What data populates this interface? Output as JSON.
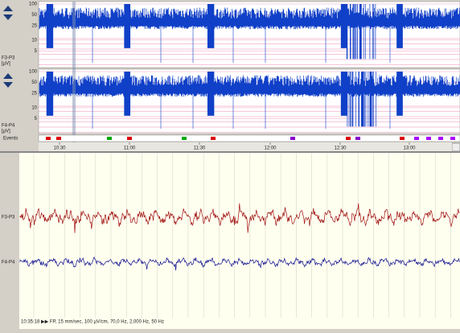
{
  "channels": [
    {
      "label": "F3-P3",
      "unit": "[µV]"
    },
    {
      "label": "F4-P4",
      "unit": "[µV]"
    }
  ],
  "trend_scale": [
    100,
    50,
    25,
    10,
    5
  ],
  "events_label": "Events",
  "time_axis": [
    "10:30",
    "11:00",
    "11:30",
    "12:00",
    "12:30",
    "13:00"
  ],
  "raw_channels": [
    "F3-P3",
    "F4-P4"
  ],
  "status": "10:35:18 ▶▶ FP, 15 mm/sec, 100 µV/cm, 70,0 Hz, 2,000 Hz, 50 Hz"
}
